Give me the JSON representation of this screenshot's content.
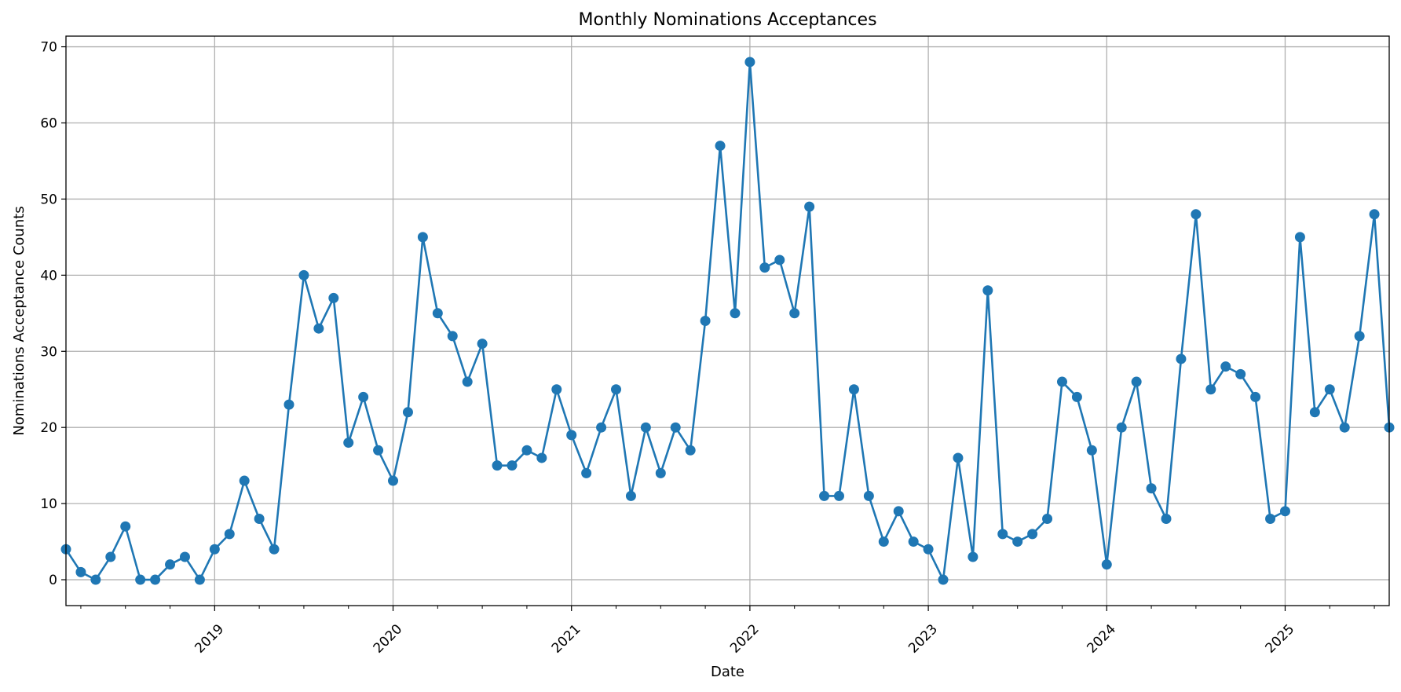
{
  "chart_data": {
    "type": "line",
    "title": "Monthly Nominations Acceptances",
    "xlabel": "Date",
    "ylabel": "Nominations Acceptance Counts",
    "x_start": "2018-03",
    "x_end": "2025-08",
    "xlim": [
      "2018-03",
      "2025-08"
    ],
    "ylim": [
      -3.4,
      71.4
    ],
    "yticks": [
      0,
      10,
      20,
      30,
      40,
      50,
      60,
      70
    ],
    "xticks": [
      {
        "label": "2019",
        "date": "2019-01"
      },
      {
        "label": "2020",
        "date": "2020-01"
      },
      {
        "label": "2021",
        "date": "2021-01"
      },
      {
        "label": "2022",
        "date": "2022-01"
      },
      {
        "label": "2023",
        "date": "2023-01"
      },
      {
        "label": "2024",
        "date": "2024-01"
      },
      {
        "label": "2025",
        "date": "2025-01"
      }
    ],
    "grid": true,
    "marker": "circle",
    "line_color": "#1f77b4",
    "series": [
      {
        "x": [
          "2018-03",
          "2018-04",
          "2018-05",
          "2018-06",
          "2018-07",
          "2018-08",
          "2018-09",
          "2018-10",
          "2018-11",
          "2018-12",
          "2019-01",
          "2019-02",
          "2019-03",
          "2019-04",
          "2019-05",
          "2019-06",
          "2019-07",
          "2019-08",
          "2019-09",
          "2019-10",
          "2019-11",
          "2019-12",
          "2020-01",
          "2020-02",
          "2020-03",
          "2020-04",
          "2020-05",
          "2020-06",
          "2020-07",
          "2020-08",
          "2020-09",
          "2020-10",
          "2020-11",
          "2020-12",
          "2021-01",
          "2021-02",
          "2021-03",
          "2021-04",
          "2021-05",
          "2021-06",
          "2021-07",
          "2021-08",
          "2021-09",
          "2021-10",
          "2021-11",
          "2021-12",
          "2022-01",
          "2022-02",
          "2022-03",
          "2022-04",
          "2022-05",
          "2022-06",
          "2022-07",
          "2022-08",
          "2022-09",
          "2022-10",
          "2022-11",
          "2022-12",
          "2023-01",
          "2023-02",
          "2023-03",
          "2023-04",
          "2023-05",
          "2023-06",
          "2023-07",
          "2023-08",
          "2023-09",
          "2023-10",
          "2023-11",
          "2023-12",
          "2024-01",
          "2024-02",
          "2024-03",
          "2024-04",
          "2024-05",
          "2024-06",
          "2024-07",
          "2024-08",
          "2024-09",
          "2024-10",
          "2024-11",
          "2024-12",
          "2025-01",
          "2025-02",
          "2025-03",
          "2025-04",
          "2025-05",
          "2025-06",
          "2025-07",
          "2025-08"
        ],
        "values": [
          4,
          1,
          0,
          3,
          7,
          0,
          0,
          2,
          3,
          0,
          4,
          6,
          13,
          8,
          4,
          23,
          40,
          33,
          37,
          18,
          24,
          17,
          13,
          22,
          45,
          35,
          32,
          26,
          31,
          15,
          15,
          17,
          16,
          25,
          19,
          14,
          20,
          25,
          11,
          20,
          14,
          20,
          17,
          34,
          57,
          35,
          68,
          41,
          42,
          35,
          49,
          11,
          11,
          25,
          11,
          5,
          9,
          5,
          4,
          0,
          16,
          3,
          38,
          6,
          5,
          6,
          8,
          26,
          24,
          17,
          2,
          20,
          26,
          12,
          8,
          29,
          48,
          25,
          28,
          27,
          24,
          8,
          9,
          45,
          22,
          25,
          20,
          32,
          48,
          20
        ]
      }
    ]
  }
}
